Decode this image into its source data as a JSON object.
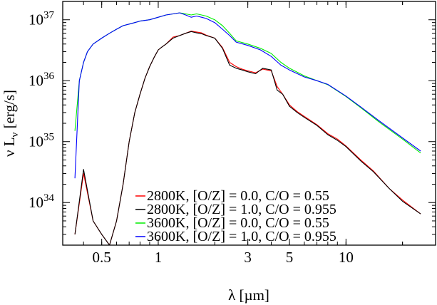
{
  "chart_data": {
    "type": "line",
    "title": "",
    "xlabel": "λ [µm]",
    "ylabel": "ν L_ν [erg/s]",
    "x_scale": "log",
    "y_scale": "log",
    "xlim": [
      0.31,
      30
    ],
    "ylim": [
      2e+33,
      2e+37
    ],
    "x_ticks": [
      {
        "value": 0.5,
        "label": "0.5"
      },
      {
        "value": 1,
        "label": "1"
      },
      {
        "value": 3,
        "label": "3"
      },
      {
        "value": 5,
        "label": "5"
      },
      {
        "value": 10,
        "label": "10"
      }
    ],
    "y_ticks": [
      {
        "value": 1e+34,
        "mantissa": "10",
        "exp": "34"
      },
      {
        "value": 1e+35,
        "mantissa": "10",
        "exp": "35"
      },
      {
        "value": 1e+36,
        "mantissa": "10",
        "exp": "36"
      },
      {
        "value": 1e+37,
        "mantissa": "10",
        "exp": "37"
      }
    ],
    "grid": false,
    "legend_position": "bottom-center",
    "series": [
      {
        "name": "2800K, [O/Z] = 0.0, C/O = 0.55",
        "color": "#ff0000",
        "x": [
          0.36,
          0.4,
          0.45,
          0.5,
          0.55,
          0.6,
          0.65,
          0.7,
          0.75,
          0.8,
          0.85,
          0.9,
          0.95,
          1.0,
          1.05,
          1.1,
          1.2,
          1.3,
          1.4,
          1.5,
          1.6,
          1.7,
          1.8,
          2.0,
          2.2,
          2.4,
          2.6,
          2.8,
          3.0,
          3.3,
          3.6,
          4.0,
          4.3,
          4.6,
          5.0,
          5.5,
          6.0,
          7.0,
          8.0,
          9.0,
          10.0,
          12.0,
          14.0,
          17.0,
          20.0,
          25.0
        ],
        "y": [
          3e+33,
          3e+34,
          5e+33,
          3e+33,
          2e+33,
          5e+33,
          2e+34,
          1e+35,
          3e+35,
          6e+35,
          1.1e+36,
          1.7e+36,
          2.4e+36,
          3.2e+36,
          3.6e+36,
          4e+36,
          5.2e+36,
          5.5e+36,
          6e+36,
          6.5e+36,
          6.3e+36,
          6.1e+36,
          5.6e+36,
          5e+36,
          3.5e+36,
          2e+36,
          1.7e+36,
          1.55e+36,
          1.45e+36,
          1.35e+36,
          1.55e+36,
          1.45e+36,
          8e+35,
          6e+35,
          4e+35,
          3.1e+35,
          2.6e+35,
          1.9e+35,
          1.35e+35,
          1.1e+35,
          8.5e+34,
          5e+34,
          3.3e+34,
          1.7e+34,
          1.1e+34,
          6.5e+33
        ]
      },
      {
        "name": "2800K, [O/Z] = 1.0, C/O = 0.955",
        "color": "#000000",
        "x": [
          0.36,
          0.4,
          0.45,
          0.5,
          0.55,
          0.6,
          0.65,
          0.7,
          0.75,
          0.8,
          0.85,
          0.9,
          0.95,
          1.0,
          1.05,
          1.1,
          1.2,
          1.3,
          1.4,
          1.5,
          1.6,
          1.7,
          1.8,
          2.0,
          2.2,
          2.4,
          2.6,
          2.8,
          3.0,
          3.3,
          3.6,
          4.0,
          4.3,
          4.6,
          5.0,
          5.5,
          6.0,
          7.0,
          8.0,
          9.0,
          10.0,
          12.0,
          14.0,
          17.0,
          20.0,
          25.0
        ],
        "y": [
          3e+33,
          3.5e+34,
          5e+33,
          3e+33,
          2e+33,
          5e+33,
          2e+34,
          1e+35,
          3e+35,
          6e+35,
          1.1e+36,
          1.7e+36,
          2.4e+36,
          3.2e+36,
          3.6e+36,
          4e+36,
          5e+36,
          5.5e+36,
          6e+36,
          6.4e+36,
          6.1e+36,
          5.9e+36,
          5.5e+36,
          5e+36,
          3.4e+36,
          1.8e+36,
          1.6e+36,
          1.5e+36,
          1.4e+36,
          1.3e+36,
          1.6e+36,
          1.5e+36,
          7e+35,
          6e+35,
          3.8e+35,
          3e+35,
          2.5e+35,
          1.85e+35,
          1.3e+35,
          1.05e+35,
          8.3e+34,
          4.8e+34,
          3.2e+34,
          1.7e+34,
          1.05e+34,
          6.5e+33
        ]
      },
      {
        "name": "3600K, [O/Z] = 0.0, C/O = 0.55",
        "color": "#00ee00",
        "x": [
          0.36,
          0.38,
          0.4,
          0.42,
          0.45,
          0.5,
          0.55,
          0.6,
          0.65,
          0.7,
          0.75,
          0.8,
          0.9,
          1.0,
          1.1,
          1.2,
          1.3,
          1.4,
          1.5,
          1.6,
          1.7,
          1.8,
          2.0,
          2.2,
          2.4,
          2.6,
          3.0,
          3.5,
          4.0,
          4.5,
          5.0,
          6.0,
          7.0,
          8.0,
          10.0,
          12.0,
          15.0,
          20.0,
          25.0
        ],
        "y": [
          1.5e+35,
          1e+36,
          2e+36,
          3e+36,
          4e+36,
          5e+36,
          6e+36,
          7e+36,
          8e+36,
          8.5e+36,
          9e+36,
          9.5e+36,
          1e+37,
          1.1e+37,
          1.2e+37,
          1.25e+37,
          1.3e+37,
          1.25e+37,
          1.2e+37,
          1.25e+37,
          1.2e+37,
          1.15e+37,
          1e+37,
          8e+36,
          6e+36,
          4.5e+36,
          4e+36,
          3.4e+36,
          2.8e+36,
          2e+36,
          1.6e+36,
          1.2e+36,
          1e+36,
          8.6e+35,
          5.5e+35,
          3.6e+35,
          2.1e+35,
          1.1e+35,
          6.5e+34
        ]
      },
      {
        "name": "3600K, [O/Z] = 1.0, C/O = 0.955",
        "color": "#0000ff",
        "x": [
          0.36,
          0.38,
          0.4,
          0.42,
          0.45,
          0.5,
          0.55,
          0.6,
          0.65,
          0.7,
          0.75,
          0.8,
          0.9,
          1.0,
          1.1,
          1.2,
          1.3,
          1.4,
          1.5,
          1.6,
          1.7,
          1.8,
          2.0,
          2.2,
          2.4,
          2.6,
          3.0,
          3.5,
          4.0,
          4.5,
          5.0,
          6.0,
          7.0,
          8.0,
          10.0,
          12.0,
          15.0,
          20.0,
          25.0
        ],
        "y": [
          2.5e+34,
          1e+36,
          2e+36,
          3e+36,
          4e+36,
          5e+36,
          6e+36,
          7e+36,
          8e+36,
          8.5e+36,
          9e+36,
          9.5e+36,
          1e+37,
          1.1e+37,
          1.2e+37,
          1.25e+37,
          1.3e+37,
          1.2e+37,
          1.1e+37,
          1.15e+37,
          1.1e+37,
          1.05e+37,
          9e+36,
          7e+36,
          5.5e+36,
          4.3e+36,
          3.8e+36,
          3.2e+36,
          2.5e+36,
          1.8e+36,
          1.5e+36,
          1.15e+36,
          1e+36,
          8.7e+35,
          5.6e+35,
          3.7e+35,
          2.2e+35,
          1.15e+35,
          7e+34
        ]
      }
    ]
  }
}
